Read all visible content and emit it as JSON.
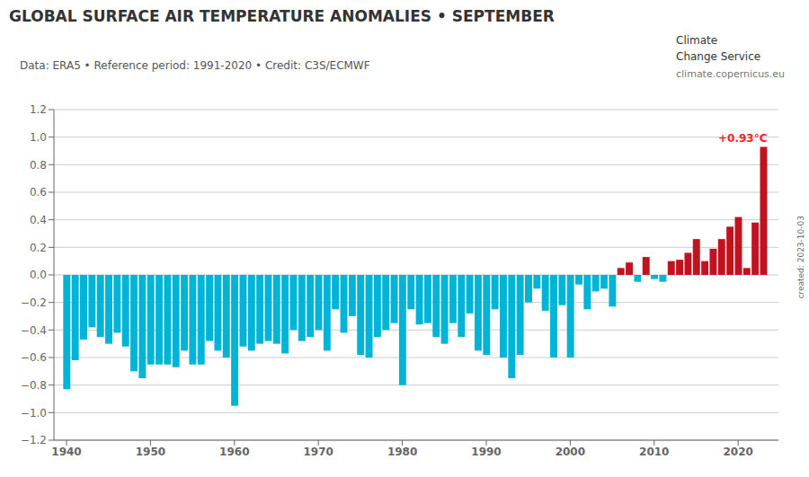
{
  "chart_data": {
    "type": "bar",
    "title": "GLOBAL SURFACE AIR TEMPERATURE ANOMALIES • SEPTEMBER",
    "subtitle": "Data: ERA5 • Reference period: 1991-2020 • Credit: C3S/ECMWF",
    "x": [
      1940,
      1941,
      1942,
      1943,
      1944,
      1945,
      1946,
      1947,
      1948,
      1949,
      1950,
      1951,
      1952,
      1953,
      1954,
      1955,
      1956,
      1957,
      1958,
      1959,
      1960,
      1961,
      1962,
      1963,
      1964,
      1965,
      1966,
      1967,
      1968,
      1969,
      1970,
      1971,
      1972,
      1973,
      1974,
      1975,
      1976,
      1977,
      1978,
      1979,
      1980,
      1981,
      1982,
      1983,
      1984,
      1985,
      1986,
      1987,
      1988,
      1989,
      1990,
      1991,
      1992,
      1993,
      1994,
      1995,
      1996,
      1997,
      1998,
      1999,
      2000,
      2001,
      2002,
      2003,
      2004,
      2005,
      2006,
      2007,
      2008,
      2009,
      2010,
      2011,
      2012,
      2013,
      2014,
      2015,
      2016,
      2017,
      2018,
      2019,
      2020,
      2021,
      2022,
      2023
    ],
    "values": [
      -0.83,
      -0.62,
      -0.47,
      -0.38,
      -0.45,
      -0.5,
      -0.42,
      -0.52,
      -0.7,
      -0.75,
      -0.65,
      -0.65,
      -0.65,
      -0.67,
      -0.55,
      -0.65,
      -0.65,
      -0.48,
      -0.55,
      -0.6,
      -0.95,
      -0.52,
      -0.55,
      -0.5,
      -0.48,
      -0.5,
      -0.57,
      -0.4,
      -0.48,
      -0.45,
      -0.4,
      -0.55,
      -0.25,
      -0.42,
      -0.3,
      -0.58,
      -0.6,
      -0.45,
      -0.4,
      -0.35,
      -0.8,
      -0.25,
      -0.36,
      -0.35,
      -0.45,
      -0.5,
      -0.35,
      -0.45,
      -0.28,
      -0.55,
      -0.58,
      -0.25,
      -0.6,
      -0.75,
      -0.58,
      -0.2,
      -0.1,
      -0.26,
      -0.6,
      -0.22,
      -0.6,
      -0.07,
      -0.25,
      -0.12,
      -0.1,
      -0.23,
      0.05,
      0.09,
      -0.05,
      0.13,
      -0.03,
      -0.05,
      0.1,
      0.11,
      0.16,
      0.26,
      0.1,
      0.19,
      0.26,
      0.35,
      0.42,
      0.05,
      0.38,
      0.93
    ],
    "colors": [
      "#00b4d8",
      "#00b4d8",
      "#00b4d8",
      "#00b4d8",
      "#00b4d8",
      "#00b4d8",
      "#00b4d8",
      "#00b4d8",
      "#00b4d8",
      "#00b4d8",
      "#00b4d8",
      "#00b4d8",
      "#00b4d8",
      "#00b4d8",
      "#00b4d8",
      "#00b4d8",
      "#00b4d8",
      "#00b4d8",
      "#00b4d8",
      "#00b4d8",
      "#00b4d8",
      "#00b4d8",
      "#00b4d8",
      "#00b4d8",
      "#00b4d8",
      "#00b4d8",
      "#00b4d8",
      "#00b4d8",
      "#00b4d8",
      "#00b4d8",
      "#00b4d8",
      "#00b4d8",
      "#00b4d8",
      "#00b4d8",
      "#00b4d8",
      "#00b4d8",
      "#00b4d8",
      "#00b4d8",
      "#00b4d8",
      "#00b4d8",
      "#00b4d8",
      "#00b4d8",
      "#00b4d8",
      "#00b4d8",
      "#00b4d8",
      "#00b4d8",
      "#00b4d8",
      "#00b4d8",
      "#00b4d8",
      "#00b4d8",
      "#00b4d8",
      "#00b4d8",
      "#00b4d8",
      "#00b4d8",
      "#00b4d8",
      "#00b4d8",
      "#00b4d8",
      "#00b4d8",
      "#00b4d8",
      "#00b4d8",
      "#00b4d8",
      "#00b4d8",
      "#00b4d8",
      "#00b4d8",
      "#00b4d8",
      "#00b4d8",
      "#c1121f",
      "#c1121f",
      "#00b4d8",
      "#c1121f",
      "#00b4d8",
      "#00b4d8",
      "#c1121f",
      "#c1121f",
      "#c1121f",
      "#c1121f",
      "#c1121f",
      "#c1121f",
      "#c1121f",
      "#c1121f",
      "#c1121f",
      "#c1121f",
      "#c1121f",
      "#c1121f"
    ],
    "xlim": [
      1938.5,
      2024.8
    ],
    "xticks": [
      1940,
      1950,
      1960,
      1970,
      1980,
      1990,
      2000,
      2010,
      2020
    ],
    "ylim": [
      -1.2,
      1.2
    ],
    "yticks": [
      {
        "value": -1.2,
        "label": "−1.2"
      },
      {
        "value": -1.0,
        "label": "−1.0"
      },
      {
        "value": -0.8,
        "label": "−0.8"
      },
      {
        "value": -0.6,
        "label": "−0.6"
      },
      {
        "value": -0.4,
        "label": "−0.4"
      },
      {
        "value": -0.2,
        "label": "−0.2"
      },
      {
        "value": 0.0,
        "label": "0.0"
      },
      0.2,
      0.4,
      0.6,
      0.8,
      {
        "value": 1.0,
        "label": "1.0"
      },
      1.2
    ],
    "grid": true,
    "annotations": [
      {
        "text": "+0.93°C",
        "x": 2023,
        "color": "#ff2222"
      }
    ],
    "logo_text": [
      "Climate",
      "Change Service"
    ],
    "website": "climate.copernicus.eu",
    "credit": "created: 2023-10-03"
  }
}
